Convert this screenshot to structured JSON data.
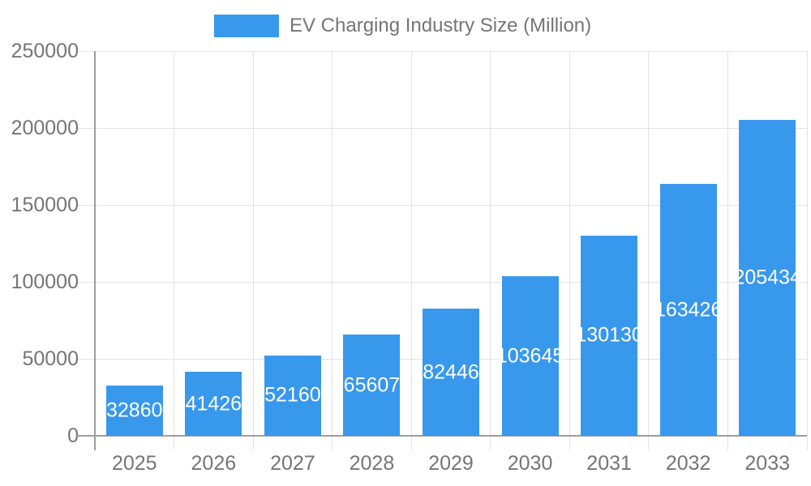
{
  "legend": {
    "entries": [
      {
        "label": "EV Charging Industry Size (Million)",
        "color": "#3898EC"
      }
    ],
    "position": "top"
  },
  "chart_data": {
    "type": "bar",
    "title": "EV Charging Industry Size (Million)",
    "series_name": "EV Charging Industry Size (Million)",
    "categories": [
      "2025",
      "2026",
      "2027",
      "2028",
      "2029",
      "2030",
      "2031",
      "2032",
      "2033"
    ],
    "values": [
      32860,
      41426,
      52160,
      65607,
      82446,
      103645,
      130130,
      163426,
      205434
    ],
    "value_labels": [
      "32860",
      "41426",
      "52160",
      "65607",
      "82446",
      "103645",
      "130130",
      "163426",
      "205434"
    ],
    "xlabel": "",
    "ylabel": "",
    "ylim": [
      0,
      250000
    ],
    "yticks": [
      0,
      50000,
      100000,
      150000,
      200000,
      250000
    ],
    "ytick_labels": [
      "0",
      "50000",
      "100000",
      "150000",
      "200000",
      "250000"
    ],
    "grid": true,
    "legend_position": "top",
    "value_label_position": "center-of-bar"
  },
  "colors": {
    "bar": "#3898EC",
    "grid": "#E3E3E3",
    "axis": "#9E9E9E",
    "text": "#757575",
    "value_label": "#FFFFFF",
    "background": "#FFFFFF"
  }
}
